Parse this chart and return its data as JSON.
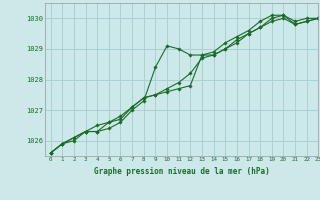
{
  "bg_color": "#cce8e8",
  "grid_color": "#aad0d0",
  "line_color": "#1a6b2a",
  "marker_color": "#1a6b2a",
  "title": "Graphe pression niveau de la mer (hPa)",
  "title_color": "#1a6b2a",
  "xlim": [
    -0.5,
    23
  ],
  "ylim": [
    1025.5,
    1030.5
  ],
  "yticks": [
    1026,
    1027,
    1028,
    1029,
    1030
  ],
  "xticks": [
    0,
    1,
    2,
    3,
    4,
    5,
    6,
    7,
    8,
    9,
    10,
    11,
    12,
    13,
    14,
    15,
    16,
    17,
    18,
    19,
    20,
    21,
    22,
    23
  ],
  "series": [
    [
      1025.6,
      1025.9,
      1026.1,
      1026.3,
      1026.3,
      1026.4,
      1026.6,
      1027.0,
      1027.3,
      1028.4,
      1029.1,
      1029.0,
      1028.8,
      1028.8,
      1028.9,
      1029.2,
      1029.4,
      1029.6,
      1029.9,
      1030.1,
      1030.1,
      1029.8,
      1029.9,
      1030.0
    ],
    [
      1025.6,
      1025.9,
      1026.0,
      1026.3,
      1026.3,
      1026.6,
      1026.7,
      1027.1,
      1027.4,
      1027.5,
      1027.6,
      1027.7,
      1027.8,
      1028.8,
      1028.8,
      1029.0,
      1029.3,
      1029.5,
      1029.7,
      1030.0,
      1030.1,
      1029.9,
      1030.0,
      1030.0
    ],
    [
      1025.6,
      1025.9,
      1026.1,
      1026.3,
      1026.5,
      1026.6,
      1026.8,
      1027.1,
      1027.4,
      1027.5,
      1027.7,
      1027.9,
      1028.2,
      1028.7,
      1028.8,
      1029.0,
      1029.2,
      1029.5,
      1029.7,
      1029.9,
      1030.0,
      1029.8,
      1029.9,
      1030.0
    ]
  ]
}
